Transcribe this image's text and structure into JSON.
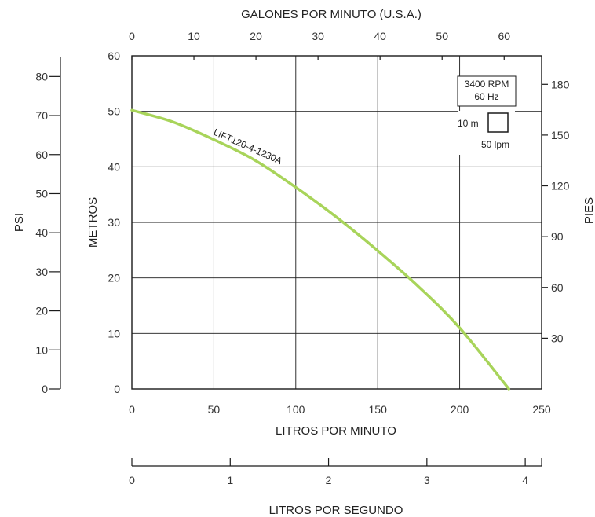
{
  "chart_data": {
    "type": "line",
    "title": "",
    "series": [
      {
        "name": "LIFT120-4-1230A",
        "color": "#a8d45a",
        "x": [
          0,
          25,
          50,
          75,
          100,
          125,
          150,
          175,
          200,
          230
        ],
        "y": [
          50.2,
          48.1,
          44.9,
          41.2,
          36.3,
          30.9,
          24.9,
          18.4,
          11.0,
          0
        ]
      }
    ],
    "axes": {
      "bottom": {
        "label": "LITROS POR MINUTO",
        "range": [
          0,
          250
        ],
        "ticks": [
          "0",
          "50",
          "100",
          "150",
          "200",
          "250"
        ]
      },
      "top": {
        "label": "GALONES POR MINUTO (U.S.A.)",
        "range": [
          0,
          66.04
        ],
        "ticks": [
          "0",
          "10",
          "20",
          "30",
          "40",
          "50",
          "60"
        ]
      },
      "left": {
        "label": "METROS",
        "range": [
          0,
          60
        ],
        "ticks": [
          "0",
          "10",
          "20",
          "30",
          "40",
          "50",
          "60"
        ]
      },
      "right": {
        "label": "PIES",
        "range": [
          0,
          196.85
        ],
        "ticks": [
          "30",
          "60",
          "90",
          "120",
          "150",
          "180"
        ]
      },
      "psi": {
        "label": "PSI",
        "range": [
          0,
          85.3
        ],
        "ticks": [
          "0",
          "10",
          "20",
          "30",
          "40",
          "50",
          "60",
          "70",
          "80"
        ]
      },
      "lps": {
        "label": "LITROS POR SEGUNDO",
        "range": [
          0,
          4.1667
        ],
        "ticks": [
          "0",
          "1",
          "2",
          "3",
          "4"
        ]
      }
    },
    "grid": true,
    "annotation": {
      "speed": "3400 RPM",
      "freq": "60 Hz",
      "scale_vertical": "10 m",
      "scale_horizontal": "50 lpm"
    }
  }
}
